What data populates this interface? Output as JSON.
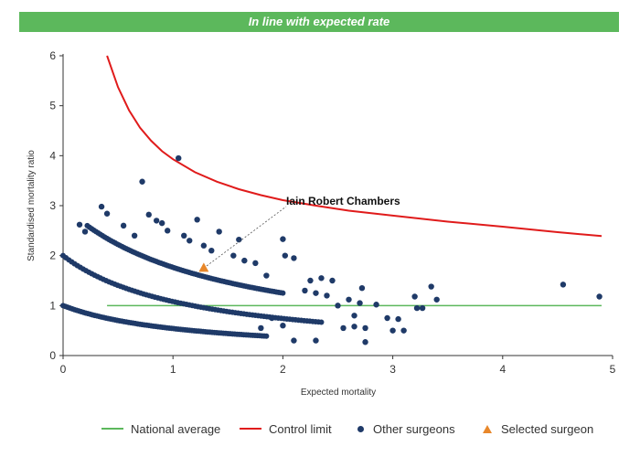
{
  "banner": {
    "text": "In line with expected rate"
  },
  "chart_data": {
    "type": "scatter",
    "xlabel": "Expected mortality",
    "ylabel": "Standardised mortality ratio",
    "xlim": [
      0,
      5
    ],
    "ylim": [
      0,
      6
    ],
    "xticks": [
      "0",
      "1",
      "2",
      "3",
      "4",
      "5"
    ],
    "yticks": [
      "0",
      "1",
      "2",
      "3",
      "4",
      "5",
      "6"
    ],
    "grid": false,
    "legend_position": "bottom",
    "national_average": {
      "name": "National average",
      "y": 1,
      "x_start": 0.4,
      "x_end": 4.9,
      "color": "#5cb85c"
    },
    "control_limit": {
      "name": "Control limit",
      "color": "#e01b1b",
      "points": [
        [
          0.4,
          6.0
        ],
        [
          0.5,
          5.37
        ],
        [
          0.6,
          4.91
        ],
        [
          0.7,
          4.56
        ],
        [
          0.8,
          4.3
        ],
        [
          0.9,
          4.09
        ],
        [
          1.0,
          3.93
        ],
        [
          1.2,
          3.67
        ],
        [
          1.4,
          3.48
        ],
        [
          1.6,
          3.33
        ],
        [
          1.8,
          3.21
        ],
        [
          2.0,
          3.11
        ],
        [
          2.3,
          3.0
        ],
        [
          2.6,
          2.9
        ],
        [
          3.0,
          2.8
        ],
        [
          3.5,
          2.68
        ],
        [
          4.0,
          2.58
        ],
        [
          4.5,
          2.47
        ],
        [
          4.9,
          2.39
        ]
      ]
    },
    "other_surgeons": {
      "name": "Other surgeons",
      "color": "#1f3a68",
      "points": [
        [
          0.15,
          2.62
        ],
        [
          0.2,
          2.48
        ],
        [
          0.35,
          2.98
        ],
        [
          0.4,
          2.84
        ],
        [
          0.55,
          2.6
        ],
        [
          0.65,
          2.4
        ],
        [
          0.72,
          3.48
        ],
        [
          0.78,
          2.82
        ],
        [
          0.85,
          2.7
        ],
        [
          0.9,
          2.65
        ],
        [
          0.95,
          2.5
        ],
        [
          1.05,
          3.95
        ],
        [
          1.1,
          2.4
        ],
        [
          1.15,
          2.3
        ],
        [
          1.22,
          2.72
        ],
        [
          1.28,
          2.2
        ],
        [
          1.35,
          2.1
        ],
        [
          1.42,
          2.48
        ],
        [
          1.55,
          2.0
        ],
        [
          1.6,
          2.32
        ],
        [
          1.65,
          1.9
        ],
        [
          1.75,
          1.85
        ],
        [
          1.85,
          1.6
        ],
        [
          2.0,
          2.33
        ],
        [
          2.02,
          2.0
        ],
        [
          2.1,
          1.95
        ],
        [
          2.2,
          1.3
        ],
        [
          2.25,
          1.5
        ],
        [
          2.3,
          1.25
        ],
        [
          2.35,
          1.55
        ],
        [
          2.4,
          1.2
        ],
        [
          2.45,
          1.5
        ],
        [
          2.5,
          1.0
        ],
        [
          2.6,
          1.12
        ],
        [
          2.65,
          0.8
        ],
        [
          2.7,
          1.05
        ],
        [
          2.72,
          1.35
        ],
        [
          2.75,
          0.55
        ],
        [
          2.85,
          1.02
        ],
        [
          2.95,
          0.75
        ],
        [
          3.0,
          0.5
        ],
        [
          3.05,
          0.73
        ],
        [
          3.1,
          0.5
        ],
        [
          3.2,
          1.18
        ],
        [
          3.22,
          0.95
        ],
        [
          3.27,
          0.95
        ],
        [
          3.35,
          1.38
        ],
        [
          3.4,
          1.12
        ],
        [
          2.55,
          0.55
        ],
        [
          2.65,
          0.58
        ],
        [
          2.75,
          0.27
        ],
        [
          2.3,
          0.3
        ],
        [
          2.1,
          0.3
        ],
        [
          4.55,
          1.42
        ],
        [
          4.88,
          1.18
        ],
        [
          1.9,
          0.75
        ],
        [
          2.0,
          0.6
        ],
        [
          1.8,
          0.55
        ]
      ]
    },
    "selected_surgeon": {
      "name": "Selected surgeon",
      "color": "#e8872a",
      "x": 1.28,
      "y": 1.75,
      "label": "Iain Robert Chambers"
    }
  }
}
